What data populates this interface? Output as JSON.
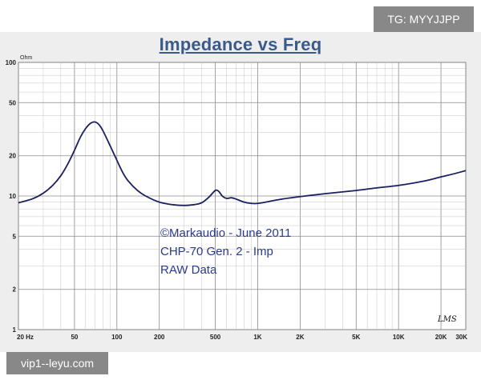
{
  "chart_data": {
    "type": "line",
    "title": "Impedance vs Freq",
    "ylabel": "Ohm",
    "xlabel": "",
    "x_scale": "log",
    "y_scale": "log",
    "xlim": [
      20,
      30000
    ],
    "ylim": [
      1,
      100
    ],
    "grid": true,
    "x_ticks": [
      {
        "value": 20,
        "label": "20 Hz"
      },
      {
        "value": 50,
        "label": "50"
      },
      {
        "value": 100,
        "label": "100"
      },
      {
        "value": 200,
        "label": "200"
      },
      {
        "value": 500,
        "label": "500"
      },
      {
        "value": 1000,
        "label": "1K"
      },
      {
        "value": 2000,
        "label": "2K"
      },
      {
        "value": 5000,
        "label": "5K"
      },
      {
        "value": 10000,
        "label": "10K"
      },
      {
        "value": 20000,
        "label": "20K"
      },
      {
        "value": 30000,
        "label": "30K"
      }
    ],
    "y_ticks": [
      {
        "value": 100,
        "label": "100"
      },
      {
        "value": 50,
        "label": "50"
      },
      {
        "value": 20,
        "label": "20"
      },
      {
        "value": 10,
        "label": "10"
      },
      {
        "value": 5,
        "label": "5"
      },
      {
        "value": 2,
        "label": "2"
      },
      {
        "value": 1,
        "label": "1"
      }
    ],
    "series": [
      {
        "color": "#1a2060",
        "points": [
          [
            20,
            8.9
          ],
          [
            25,
            9.5
          ],
          [
            30,
            10.5
          ],
          [
            35,
            12.0
          ],
          [
            40,
            14.2
          ],
          [
            45,
            17.5
          ],
          [
            50,
            22.0
          ],
          [
            55,
            27.5
          ],
          [
            60,
            32.0
          ],
          [
            65,
            35.0
          ],
          [
            70,
            35.8
          ],
          [
            75,
            34.0
          ],
          [
            80,
            30.5
          ],
          [
            90,
            23.5
          ],
          [
            100,
            18.5
          ],
          [
            110,
            15.0
          ],
          [
            120,
            13.0
          ],
          [
            140,
            11.0
          ],
          [
            160,
            10.0
          ],
          [
            200,
            9.0
          ],
          [
            250,
            8.6
          ],
          [
            300,
            8.5
          ],
          [
            350,
            8.6
          ],
          [
            400,
            8.9
          ],
          [
            450,
            9.8
          ],
          [
            500,
            11.0
          ],
          [
            530,
            10.8
          ],
          [
            560,
            10.0
          ],
          [
            600,
            9.6
          ],
          [
            650,
            9.7
          ],
          [
            700,
            9.5
          ],
          [
            800,
            9.0
          ],
          [
            900,
            8.8
          ],
          [
            1000,
            8.8
          ],
          [
            1200,
            9.1
          ],
          [
            1500,
            9.5
          ],
          [
            2000,
            9.9
          ],
          [
            3000,
            10.4
          ],
          [
            5000,
            11.0
          ],
          [
            7000,
            11.5
          ],
          [
            10000,
            12.0
          ],
          [
            15000,
            12.9
          ],
          [
            20000,
            13.9
          ],
          [
            25000,
            14.7
          ],
          [
            30000,
            15.5
          ]
        ]
      }
    ],
    "annotations": [
      "©Markaudio - June 2011",
      "CHP-70  Gen. 2 - Imp",
      "RAW Data"
    ],
    "signature": "LMS"
  },
  "watermarks": {
    "top_right": "TG: MYYJJPP",
    "bottom_left": "vip1--leyu.com"
  }
}
